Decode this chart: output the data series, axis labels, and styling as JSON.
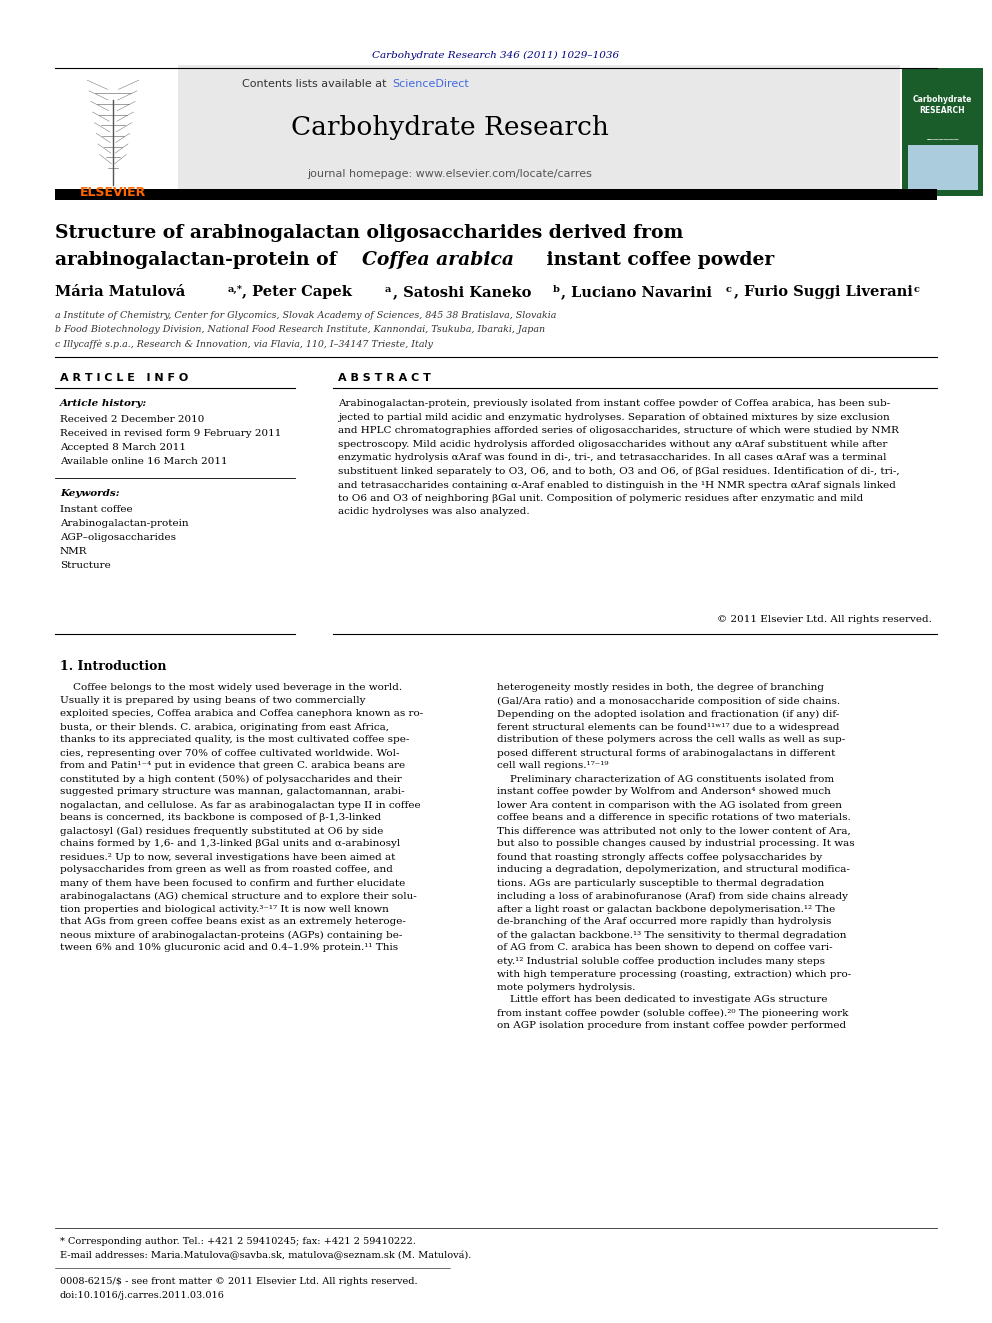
{
  "page_width": 9.92,
  "page_height": 13.23,
  "bg_color": "#ffffff",
  "journal_ref": "Carbohydrate Research 346 (2011) 1029–1036",
  "journal_ref_color": "#000080",
  "contents_text": "Contents lists available at ",
  "sciencedirect_text": "ScienceDirect",
  "sciencedirect_color": "#4169E1",
  "journal_title": "Carbohydrate Research",
  "journal_homepage": "journal homepage: www.elsevier.com/locate/carres",
  "header_bg": "#e8e8e8",
  "elsevier_color": "#FF6600",
  "paper_title_line1": "Structure of arabinogalactan oligosaccharides derived from",
  "paper_title_line2": "arabinogalactan-protein of ",
  "paper_title_coffea": "Coffea arabica",
  "paper_title_line2_end": " instant coffee powder",
  "affil_a": "a Institute of Chemistry, Center for Glycomics, Slovak Academy of Sciences, 845 38 Bratislava, Slovakia",
  "affil_b": "b Food Biotechnology Division, National Food Research Institute, Kannondai, Tsukuba, Ibaraki, Japan",
  "affil_c": "c Illycaffè s.p.a., Research & Innovation, via Flavia, 110, I–34147 Trieste, Italy",
  "article_info_title": "A R T I C L E   I N F O",
  "abstract_title": "A B S T R A C T",
  "article_history_label": "Article history:",
  "received": "Received 2 December 2010",
  "received_revised": "Received in revised form 9 February 2011",
  "accepted": "Accepted 8 March 2011",
  "available": "Available online 16 March 2011",
  "keywords_label": "Keywords:",
  "keywords": [
    "Instant coffee",
    "Arabinogalactan-protein",
    "AGP–oligosaccharides",
    "NMR",
    "Structure"
  ],
  "abstract_text": "Arabinogalactan-protein, previously isolated from instant coffee powder of Coffea arabica, has been subjected to partial mild acidic and enzymatic hydrolyses. Separation of obtained mixtures by size exclusion and HPLC chromatographies afforded series of oligosaccharides, structure of which were studied by NMR spectroscopy. Mild acidic hydrolysis afforded oligosaccharides without any αAraf substituent while after enzymatic hydrolysis αAraf was found in di-, tri-, and tetrasaccharides. In all cases αAraf was a terminal substituent linked separately to O3, O6, and to both, O3 and O6, of βGal residues. Identification of di-, tri-, and tetrasaccharides containing α-Araf enabled to distinguish in the ¹H NMR spectra αAraf signals linked to O6 and O3 of neighboring βGal unit. Composition of polymeric residues after enzymatic and mild acidic hydrolyses was also analyzed.",
  "copyright": "© 2011 Elsevier Ltd. All rights reserved.",
  "intro_title": "1. Introduction",
  "footer_text1": "* Corresponding author. Tel.: +421 2 59410245; fax: +421 2 59410222.",
  "footer_text2": "E-mail addresses: Maria.Matulova@savba.sk, matulova@seznam.sk (M. Matulová).",
  "footer_text3": "0008-6215/$ - see front matter © 2011 Elsevier Ltd. All rights reserved.",
  "footer_text4": "doi:10.1016/j.carres.2011.03.016"
}
